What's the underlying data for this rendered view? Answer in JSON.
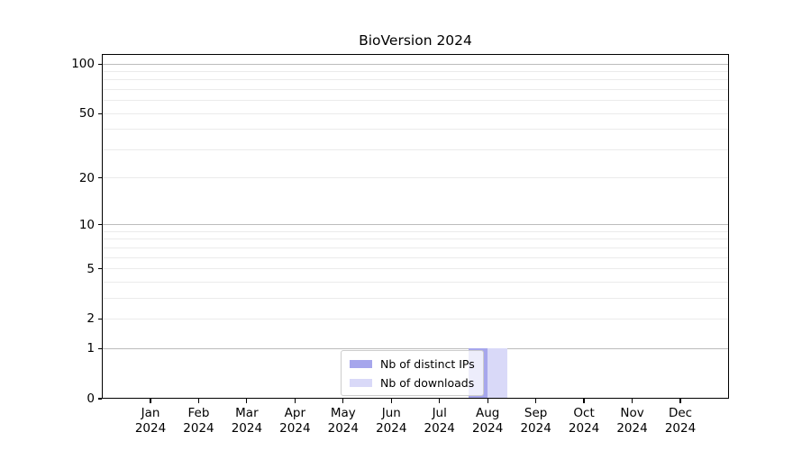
{
  "chart_data": {
    "type": "bar",
    "title": "BioVersion 2024",
    "categories": [
      "Jan 2024",
      "Feb 2024",
      "Mar 2024",
      "Apr 2024",
      "May 2024",
      "Jun 2024",
      "Jul 2024",
      "Aug 2024",
      "Sep 2024",
      "Oct 2024",
      "Nov 2024",
      "Dec 2024"
    ],
    "series": [
      {
        "name": "Nb of distinct IPs",
        "color": "#a6a6ec",
        "values": [
          0,
          0,
          0,
          0,
          0,
          0,
          0,
          1,
          0,
          0,
          0,
          0
        ]
      },
      {
        "name": "Nb of downloads",
        "color": "#d9d9f8",
        "values": [
          0,
          0,
          0,
          0,
          0,
          0,
          0,
          1,
          0,
          0,
          0,
          0
        ]
      }
    ],
    "xlabel": "",
    "ylabel": "",
    "y_axis": {
      "scale": "log-like (log10(1+v))",
      "tick_values": [
        0,
        1,
        2,
        5,
        10,
        20,
        50,
        100
      ],
      "max": 115,
      "major_gridlines": [
        1,
        10,
        100
      ],
      "minor_gridlines": [
        2,
        3,
        4,
        5,
        6,
        7,
        8,
        9,
        20,
        30,
        40,
        50,
        60,
        70,
        80,
        90
      ]
    },
    "legend": {
      "entries": [
        "Nb of distinct IPs",
        "Nb of downloads"
      ],
      "position": "bottom-center-inside"
    },
    "grid": true,
    "colors": {
      "grid_major": "#bcbcbc",
      "grid_minor": "#ebebeb",
      "axis_frame": "#000000",
      "background": "#ffffff",
      "text": "#000000"
    }
  }
}
